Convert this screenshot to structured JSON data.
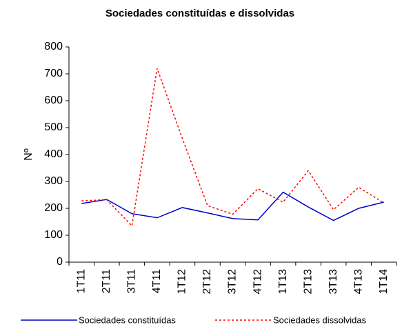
{
  "chart_data": {
    "type": "line",
    "title": "Sociedades constituídas e dissolvidas",
    "y_label": "Nº",
    "categories": [
      "1T11",
      "2T11",
      "3T11",
      "4T11",
      "1T12",
      "2T12",
      "3T12",
      "4T12",
      "1T13",
      "2T13",
      "3T13",
      "4T13",
      "1T14"
    ],
    "series": [
      {
        "name": "Sociedades constituídas",
        "color": "#0000cc",
        "dashed": false,
        "values": [
          218,
          233,
          180,
          165,
          203,
          183,
          162,
          157,
          260,
          205,
          155,
          200,
          223
        ]
      },
      {
        "name": "Sociedades dissolvidas",
        "color": "#ff0000",
        "dashed": true,
        "values": [
          228,
          232,
          135,
          720,
          460,
          210,
          178,
          273,
          223,
          340,
          195,
          278,
          220
        ]
      }
    ],
    "ylim": [
      0,
      800
    ],
    "yticks": [
      0,
      100,
      200,
      300,
      400,
      500,
      600,
      700,
      800
    ],
    "grid": false
  }
}
